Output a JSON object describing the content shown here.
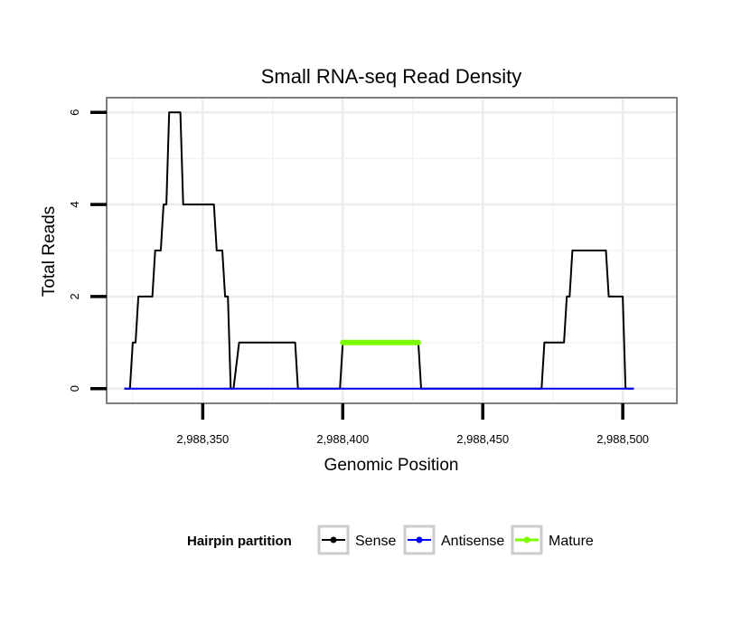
{
  "chart_data": {
    "type": "line",
    "title": "Small RNA-seq Read Density",
    "xlabel": "Genomic Position",
    "ylabel": "Total Reads",
    "xlim": [
      2988316,
      2988519
    ],
    "ylim": [
      -0.3,
      6.3
    ],
    "x_ticks": [
      2988350,
      2988400,
      2988450,
      2988500
    ],
    "x_tick_labels": [
      "2,988,350",
      "2,988,400",
      "2,988,450",
      "2,988,500"
    ],
    "y_ticks": [
      0,
      2,
      4,
      6
    ],
    "y_tick_labels": [
      "0",
      "2",
      "4",
      "6"
    ],
    "grid": true,
    "legend": {
      "title": "Hairpin partition",
      "position": "bottom",
      "entries": [
        "Sense",
        "Antisense",
        "Mature"
      ]
    },
    "series": [
      {
        "name": "Sense",
        "color": "#000000",
        "x": [
          2988322,
          2988324,
          2988325,
          2988326,
          2988327,
          2988332,
          2988333,
          2988335,
          2988336,
          2988337,
          2988338,
          2988341,
          2988342,
          2988343,
          2988345,
          2988354,
          2988355,
          2988357,
          2988358,
          2988359,
          2988360,
          2988361,
          2988363,
          2988383,
          2988384,
          2988399,
          2988400,
          2988427,
          2988428,
          2988471,
          2988472,
          2988479,
          2988480,
          2988481,
          2988482,
          2988494,
          2988495,
          2988500,
          2988501,
          2988503,
          2988504
        ],
        "y": [
          0,
          0,
          1,
          1,
          2,
          2,
          3,
          3,
          4,
          4,
          6,
          6,
          6,
          4,
          4,
          4,
          3,
          3,
          2,
          2,
          0,
          0,
          1,
          1,
          0,
          0,
          1,
          1,
          0,
          0,
          1,
          1,
          2,
          2,
          3,
          3,
          2,
          2,
          0,
          0,
          0
        ]
      },
      {
        "name": "Antisense",
        "color": "#0000ff",
        "x": [
          2988322,
          2988504
        ],
        "y": [
          0,
          0
        ]
      },
      {
        "name": "Mature",
        "color": "#7cfc00",
        "x": [
          2988400,
          2988427
        ],
        "y": [
          1,
          1
        ]
      }
    ]
  }
}
